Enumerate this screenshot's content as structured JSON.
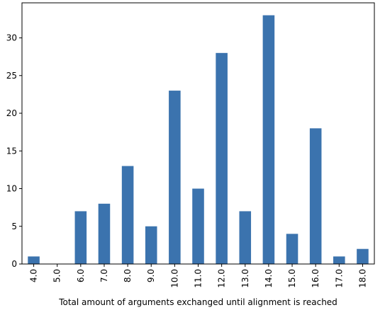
{
  "chart_data": {
    "type": "bar",
    "title": "",
    "xlabel": "Total amount of arguments exchanged until alignment is reached",
    "ylabel": "",
    "categories": [
      "4.0",
      "5.0",
      "6.0",
      "7.0",
      "8.0",
      "9.0",
      "10.0",
      "11.0",
      "12.0",
      "13.0",
      "14.0",
      "15.0",
      "16.0",
      "17.0",
      "18.0"
    ],
    "values": [
      1,
      0,
      7,
      8,
      13,
      5,
      23,
      10,
      28,
      7,
      33,
      4,
      18,
      1,
      2
    ],
    "yticks": [
      0,
      5,
      10,
      15,
      20,
      25,
      30
    ],
    "ylim": [
      0,
      34.65
    ],
    "grid": false,
    "legend": "none",
    "bar_color": "#3b73ae"
  }
}
